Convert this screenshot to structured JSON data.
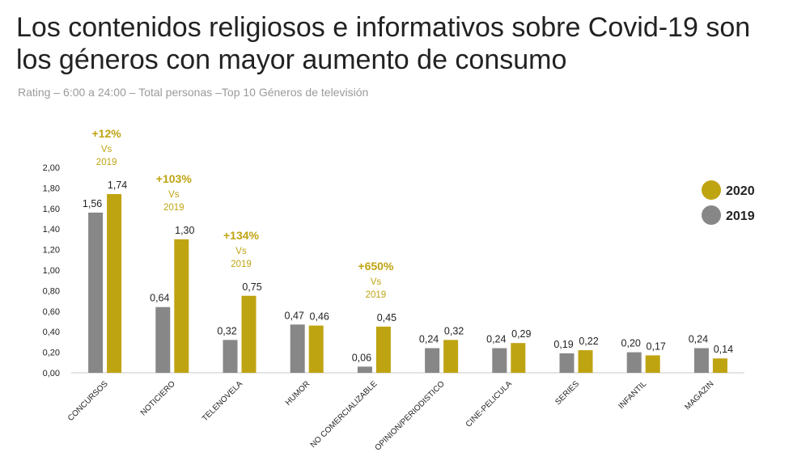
{
  "header": {
    "title": "Los contenidos religiosos e informativos sobre Covid-19 son los géneros con mayor aumento de consumo",
    "subtitle": "Rating – 6:00 a 24:00 – Total personas –Top 10 Géneros de televisión"
  },
  "colors": {
    "s2019": "#878787",
    "s2020": "#bfa412",
    "axis": "#c8c8c8",
    "text": "#222222",
    "annotation": "#bfa412"
  },
  "chart_data": {
    "type": "bar",
    "title": "",
    "xlabel": "",
    "ylabel": "",
    "ylim": [
      0,
      2
    ],
    "yticks": [
      "0,00",
      "0,20",
      "0,40",
      "0,60",
      "0,80",
      "1,00",
      "1,20",
      "1,40",
      "1,60",
      "1,80",
      "2,00"
    ],
    "grid": false,
    "legend_position": "right",
    "categories": [
      "CONCURSOS",
      "NOTICIERO",
      "TELENOVELA",
      "HUMOR",
      "NO COMERCIALIZABLE",
      "OPINION/PERIODISTICO",
      "CINE-PELICULA",
      "SERIES",
      "INFANTIL",
      "MAGAZIN"
    ],
    "series": [
      {
        "name": "2019",
        "values": [
          1.56,
          0.64,
          0.32,
          0.47,
          0.06,
          0.24,
          0.24,
          0.19,
          0.2,
          0.24
        ],
        "labels": [
          "1,56",
          "0,64",
          "0,32",
          "0,47",
          "0,06",
          "0,24",
          "0,24",
          "0,19",
          "0,20",
          "0,24"
        ]
      },
      {
        "name": "2020",
        "values": [
          1.74,
          1.3,
          0.75,
          0.46,
          0.45,
          0.32,
          0.29,
          0.22,
          0.17,
          0.14
        ],
        "labels": [
          "1,74",
          "1,30",
          "0,75",
          "0,46",
          "0,45",
          "0,32",
          "0,29",
          "0,22",
          "0,17",
          "0,14"
        ]
      }
    ],
    "annotations": [
      {
        "category_index": 0,
        "lines": [
          "+12%",
          "Vs",
          "2019"
        ]
      },
      {
        "category_index": 1,
        "lines": [
          "+103%",
          "Vs",
          "2019"
        ]
      },
      {
        "category_index": 2,
        "lines": [
          "+134%",
          "Vs",
          "2019"
        ]
      },
      {
        "category_index": 4,
        "lines": [
          "+650%",
          "Vs",
          "2019"
        ]
      }
    ]
  }
}
